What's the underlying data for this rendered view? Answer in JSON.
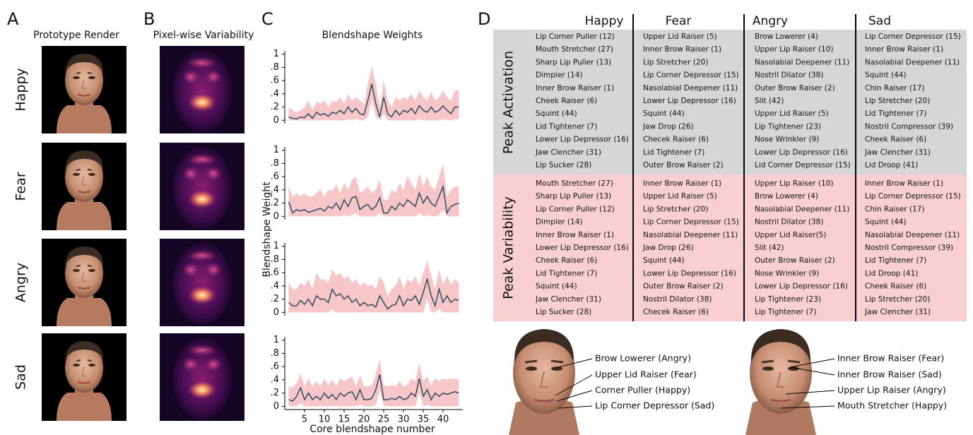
{
  "panels": {
    "a": {
      "letter": "A",
      "title": "Prototype Render",
      "rows": [
        "Happy",
        "Fear",
        "Angry",
        "Sad"
      ]
    },
    "b": {
      "letter": "B",
      "title": "Pixel-wise Variability"
    },
    "c": {
      "letter": "C"
    },
    "d": {
      "letter": "D"
    }
  },
  "chart_data": [
    {
      "type": "line",
      "title": "Blendshape Weights",
      "x": [
        1,
        2,
        3,
        4,
        5,
        6,
        7,
        8,
        9,
        10,
        11,
        12,
        13,
        14,
        15,
        16,
        17,
        18,
        19,
        20,
        21,
        22,
        23,
        24,
        25,
        26,
        27,
        28,
        29,
        30,
        31,
        32,
        33,
        34,
        35,
        36,
        37,
        38,
        39,
        40,
        41,
        42,
        43,
        44
      ],
      "values": [
        0.05,
        0.03,
        0.02,
        0.05,
        0.04,
        0.1,
        0.03,
        0.12,
        0.08,
        0.1,
        0.06,
        0.12,
        0.1,
        0.15,
        0.1,
        0.2,
        0.12,
        0.18,
        0.1,
        0.08,
        0.3,
        0.55,
        0.25,
        0.05,
        0.35,
        0.1,
        0.05,
        0.15,
        0.08,
        0.15,
        0.12,
        0.18,
        0.1,
        0.22,
        0.15,
        0.12,
        0.2,
        0.12,
        0.15,
        0.22,
        0.15,
        0.1,
        0.2,
        0.2
      ],
      "band_upper": [
        0.2,
        0.15,
        0.12,
        0.15,
        0.2,
        0.3,
        0.15,
        0.28,
        0.25,
        0.3,
        0.2,
        0.3,
        0.28,
        0.35,
        0.25,
        0.4,
        0.3,
        0.35,
        0.3,
        0.25,
        0.55,
        0.82,
        0.55,
        0.2,
        0.6,
        0.3,
        0.2,
        0.35,
        0.3,
        0.35,
        0.32,
        0.4,
        0.3,
        0.45,
        0.35,
        0.3,
        0.42,
        0.3,
        0.35,
        0.45,
        0.35,
        0.3,
        0.45,
        0.45
      ],
      "band_lower": [
        0,
        0,
        0,
        0,
        0,
        0,
        0,
        0,
        0,
        0,
        0,
        0,
        0,
        0,
        0,
        0.02,
        0,
        0.02,
        0,
        0,
        0.05,
        0.3,
        0.05,
        0,
        0.1,
        0,
        0,
        0,
        0,
        0,
        0,
        0,
        0,
        0.02,
        0,
        0,
        0,
        0,
        0,
        0.02,
        0,
        0,
        0.02,
        0.02
      ],
      "line_color": "#2c4a5a",
      "band_color": "#f7c6c8",
      "xlim": [
        0,
        45
      ],
      "ylim": [
        -0.05,
        1.05
      ],
      "yticks": [
        {
          "value": 1,
          "label": "1"
        },
        {
          "value": 0.8,
          "label": ".8"
        },
        {
          "value": 0.6,
          "label": ".6"
        },
        {
          "value": 0.4,
          "label": ".4"
        },
        {
          "value": 0.2,
          "label": ".2"
        },
        0
      ]
    },
    {
      "type": "line",
      "ylabel": "Blendshape Weight",
      "x": [
        1,
        2,
        3,
        4,
        5,
        6,
        7,
        8,
        9,
        10,
        11,
        12,
        13,
        14,
        15,
        16,
        17,
        18,
        19,
        20,
        21,
        22,
        23,
        24,
        25,
        26,
        27,
        28,
        29,
        30,
        31,
        32,
        33,
        34,
        35,
        36,
        37,
        38,
        39,
        40,
        41,
        42,
        43,
        44
      ],
      "values": [
        0.22,
        0.05,
        0.1,
        0.08,
        0.1,
        0.06,
        0.08,
        0.1,
        0.12,
        0.08,
        0.15,
        0.12,
        0.2,
        0.1,
        0.25,
        0.15,
        0.28,
        0.3,
        0.1,
        0.15,
        0.18,
        0.1,
        0.15,
        0.28,
        0.05,
        0.05,
        0.15,
        0.1,
        0.2,
        0.15,
        0.25,
        0.2,
        0.15,
        0.35,
        0.2,
        0.3,
        0.2,
        0.15,
        0.3,
        0.45,
        0.05,
        0.15,
        0.18,
        0.2
      ],
      "band_upper": [
        0.45,
        0.3,
        0.35,
        0.3,
        0.35,
        0.3,
        0.3,
        0.35,
        0.4,
        0.3,
        0.4,
        0.38,
        0.48,
        0.35,
        0.5,
        0.4,
        0.55,
        0.6,
        0.35,
        0.4,
        0.45,
        0.35,
        0.4,
        0.55,
        0.25,
        0.25,
        0.4,
        0.35,
        0.5,
        0.4,
        0.6,
        0.5,
        0.4,
        0.65,
        0.45,
        0.6,
        0.45,
        0.4,
        0.6,
        0.8,
        0.3,
        0.4,
        0.45,
        0.45
      ],
      "band_lower": [
        0,
        0,
        0,
        0,
        0,
        0,
        0,
        0,
        0,
        0,
        0,
        0,
        0,
        0,
        0.02,
        0,
        0.02,
        0.05,
        0,
        0,
        0,
        0,
        0,
        0.05,
        0,
        0,
        0,
        0,
        0,
        0,
        0,
        0,
        0,
        0.05,
        0,
        0.02,
        0,
        0,
        0.02,
        0.1,
        0,
        0,
        0,
        0
      ],
      "line_color": "#2c4a5a",
      "band_color": "#f7c6c8",
      "xlim": [
        0,
        45
      ],
      "ylim": [
        -0.05,
        1.05
      ],
      "yticks": [
        {
          "value": 1,
          "label": "1"
        },
        {
          "value": 0.8,
          "label": ".8"
        },
        {
          "value": 0.6,
          "label": ".6"
        },
        {
          "value": 0.4,
          "label": ".4"
        },
        {
          "value": 0.2,
          "label": ".2"
        },
        0
      ]
    },
    {
      "type": "line",
      "x": [
        1,
        2,
        3,
        4,
        5,
        6,
        7,
        8,
        9,
        10,
        11,
        12,
        13,
        14,
        15,
        16,
        17,
        18,
        19,
        20,
        21,
        22,
        23,
        24,
        25,
        26,
        27,
        28,
        29,
        30,
        31,
        32,
        33,
        34,
        35,
        36,
        37,
        38,
        39,
        40,
        41,
        42,
        43,
        44
      ],
      "values": [
        0.15,
        0.1,
        0.1,
        0.18,
        0.12,
        0.2,
        0.1,
        0.25,
        0.2,
        0.2,
        0.15,
        0.35,
        0.25,
        0.28,
        0.2,
        0.25,
        0.15,
        0.2,
        0.1,
        0.15,
        0.1,
        0.12,
        0.08,
        0.25,
        0.15,
        0.05,
        0.1,
        0.12,
        0.25,
        0.1,
        0.2,
        0.18,
        0.25,
        0.12,
        0.3,
        0.5,
        0.25,
        0.1,
        0.35,
        0.15,
        0.25,
        0.15,
        0.2,
        0.18
      ],
      "band_upper": [
        0.45,
        0.35,
        0.35,
        0.45,
        0.4,
        0.5,
        0.35,
        0.6,
        0.5,
        0.5,
        0.45,
        0.65,
        0.55,
        0.6,
        0.5,
        0.55,
        0.45,
        0.5,
        0.4,
        0.45,
        0.4,
        0.42,
        0.35,
        0.55,
        0.45,
        0.25,
        0.35,
        0.4,
        0.55,
        0.35,
        0.5,
        0.45,
        0.55,
        0.4,
        0.6,
        0.78,
        0.55,
        0.35,
        0.65,
        0.42,
        0.55,
        0.42,
        0.5,
        0.45
      ],
      "band_lower": [
        0,
        0,
        0,
        0,
        0,
        0,
        0,
        0,
        0,
        0,
        0,
        0.05,
        0,
        0,
        0,
        0,
        0,
        0,
        0,
        0,
        0,
        0,
        0,
        0,
        0,
        0,
        0,
        0,
        0,
        0,
        0,
        0,
        0,
        0,
        0,
        0.2,
        0,
        0,
        0.05,
        0,
        0,
        0,
        0,
        0
      ],
      "line_color": "#2c4a5a",
      "band_color": "#f7c6c8",
      "xlim": [
        0,
        45
      ],
      "ylim": [
        -0.05,
        1.05
      ],
      "yticks": [
        {
          "value": 1,
          "label": "1"
        },
        {
          "value": 0.8,
          "label": ".8"
        },
        {
          "value": 0.6,
          "label": ".6"
        },
        {
          "value": 0.4,
          "label": ".4"
        },
        {
          "value": 0.2,
          "label": ".2"
        },
        0
      ]
    },
    {
      "type": "line",
      "xlabel": "Core blendshape number",
      "x": [
        1,
        2,
        3,
        4,
        5,
        6,
        7,
        8,
        9,
        10,
        11,
        12,
        13,
        14,
        15,
        16,
        17,
        18,
        19,
        20,
        21,
        22,
        23,
        24,
        25,
        26,
        27,
        28,
        29,
        30,
        31,
        32,
        33,
        34,
        35,
        36,
        37,
        38,
        39,
        40,
        41,
        42,
        43,
        44
      ],
      "values": [
        0.1,
        0.08,
        0.15,
        0.28,
        0.1,
        0.2,
        0.1,
        0.15,
        0.1,
        0.2,
        0.12,
        0.18,
        0.1,
        0.2,
        0.15,
        0.2,
        0.22,
        0.1,
        0.25,
        0.1,
        0.1,
        0.12,
        0.25,
        0.48,
        0.1,
        0.1,
        0.12,
        0.1,
        0.15,
        0.1,
        0.12,
        0.2,
        0.15,
        0.42,
        0.15,
        0.25,
        0.1,
        0.2,
        0.15,
        0.2,
        0.18,
        0.2,
        0.22,
        0.2
      ],
      "band_upper": [
        0.3,
        0.28,
        0.35,
        0.5,
        0.3,
        0.42,
        0.3,
        0.38,
        0.3,
        0.42,
        0.32,
        0.4,
        0.3,
        0.42,
        0.38,
        0.42,
        0.45,
        0.3,
        0.48,
        0.3,
        0.3,
        0.32,
        0.48,
        0.72,
        0.32,
        0.3,
        0.32,
        0.3,
        0.38,
        0.3,
        0.32,
        0.42,
        0.38,
        0.65,
        0.38,
        0.45,
        0.32,
        0.42,
        0.38,
        0.42,
        0.4,
        0.42,
        0.42,
        0.4
      ],
      "band_lower": [
        0,
        0,
        0,
        0.05,
        0,
        0,
        0,
        0,
        0,
        0,
        0,
        0,
        0,
        0,
        0,
        0,
        0,
        0,
        0.02,
        0,
        0,
        0,
        0.02,
        0.25,
        0,
        0,
        0,
        0,
        0,
        0,
        0,
        0,
        0,
        0.2,
        0,
        0.02,
        0,
        0,
        0,
        0,
        0,
        0,
        0,
        0
      ],
      "line_color": "#2c4a5a",
      "band_color": "#f7c6c8",
      "xlim": [
        0,
        45
      ],
      "ylim": [
        -0.05,
        1.05
      ],
      "yticks": [
        {
          "value": 1,
          "label": "1"
        },
        {
          "value": 0.8,
          "label": ".8"
        },
        {
          "value": 0.6,
          "label": ".6"
        },
        {
          "value": 0.4,
          "label": ".4"
        },
        {
          "value": 0.2,
          "label": ".2"
        },
        0
      ],
      "xticks": [
        5,
        10,
        15,
        20,
        25,
        30,
        35,
        40
      ]
    }
  ],
  "table": {
    "columns": [
      "Happy",
      "Fear",
      "Angry",
      "Sad"
    ],
    "row_groups": [
      "Peak Activation",
      "Peak Variability"
    ],
    "cells": [
      [
        [
          "Lip Corner Puller (12)",
          "Mouth Stretcher (27)",
          "Sharp Lip Puller (13)",
          "Dimpler (14)",
          "Inner Brow Raiser (1)",
          "Cheek Raiser (6)",
          "Squint (44)",
          "Lid Tightener (7)",
          "Lower Lip Depressor (16)",
          "Jaw Clencher (31)",
          "Lip Sucker (28)"
        ],
        [
          "Upper Lid Raiser (5)",
          "Inner Brow Raiser (1)",
          "Lip Stretcher (20)",
          "Lip Corner Depressor (15)",
          "Nasolabial Deepener (11)",
          "Lower Lip Depressor (16)",
          "Squint (44)",
          "Jaw Drop (26)",
          "Checek Raiser (6)",
          "Lid Tightener (7)",
          "Outer Brow Raiser (2)"
        ],
        [
          "Brow Lowerer (4)",
          "Upper Lip Raiser (10)",
          "Nasolabial Deepener (11)",
          "Nostril Dilator (38)",
          "Outer Brow Raiser (2)",
          "Slit (42)",
          "Upper Lid Raiser (5)",
          "Lip Tightener (23)",
          "Nose Wrinkler (9)",
          "Lower Lip Depressor (16)",
          "Lid Corner Depressor (15)"
        ],
        [
          "Lip Corner Depressor (15)",
          "Inner Brow Raiser (1)",
          "Nasolabial Deepener (11)",
          "Squint (44)",
          "Chin Raiser (17)",
          "Lip Stretcher (20)",
          "Lid Tightener (7)",
          "Nostril Compressor (39)",
          "Cheek Raiser (6)",
          "Jaw Clencher (31)",
          "Lid Droop (41)"
        ]
      ],
      [
        [
          "Mouth Stretcher (27)",
          "Sharp Lip Puller (13)",
          "Lip Corner Puller (12)",
          "Dimpler (14)",
          "Inner Brow Raiser (1)",
          "Lower Lip Depressor (16)",
          "Cheek Raiser (6)",
          "Lid Tightener (7)",
          "Squint (44)",
          "Jaw Clencher (31)",
          "Lip Sucker (28)"
        ],
        [
          "Inner Brow Raiser (1)",
          "Upper Lid Raiser (5)",
          "Lip Stretcher (20)",
          "Lip Corner Depressor (15)",
          "Nasolabial Deepener (11)",
          "Jaw Drop (26)",
          "Squint (44)",
          "Lower Lip Depressor (16)",
          "Outer Brow Raiser (2)",
          "Nostril Dilator (38)",
          "Checek Raiser (6)"
        ],
        [
          "Upper Lip Raiser (10)",
          "Brow Lowerer (4)",
          "Nasolabial Deepener (11)",
          "Nostril Dilator (38)",
          "Upper Lid Raiser(5)",
          "Slit (42)",
          "Outer Brow Raiser (2)",
          "Nose Wrinkler (9)",
          "Lower Lip Depressor (16)",
          "Lip Tightener (23)",
          "Lip Tightener (7)"
        ],
        [
          "Inner Brow Raiser (1)",
          "Lip Corner Depressor (15)",
          "Chin Raiser (17)",
          "Squint (44)",
          "Nasolabial Deepener (11)",
          "Nostril Compressor (39)",
          "Lid Tightener (7)",
          "Lid Droop (41)",
          "Cheek Raiser (6)",
          "Lip Stretcher (20)",
          "Jaw Clencher (31)"
        ]
      ]
    ]
  },
  "annotations": {
    "left": [
      "Brow Lowerer (Angry)",
      "Upper Lid Raiser (Fear)",
      "Corner Puller (Happy)",
      "Lip Corner Depressor (Sad)"
    ],
    "right": [
      "Inner Brow Raiser (Fear)",
      "Inner Brow Raiser (Sad)",
      "Upper Lip Raiser (Angry)",
      "Mouth Stretcher (Happy)"
    ]
  }
}
